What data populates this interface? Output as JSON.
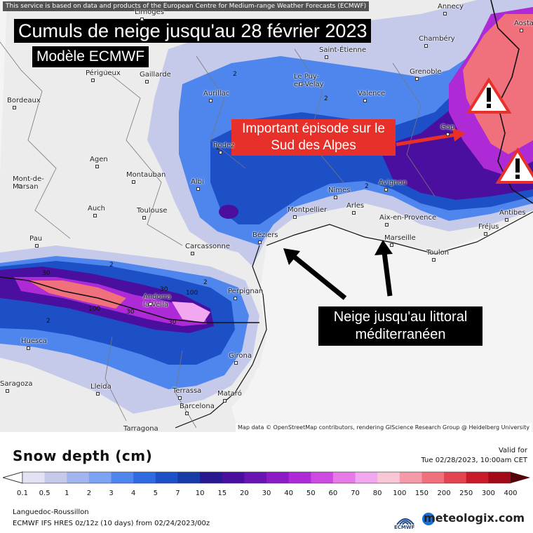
{
  "map": {
    "credit_top": "This service is based on data and products of the European Centre for Medium-range Weather Forecasts (ECMWF)",
    "title": "Cumuls de neige jusqu'au 28 février 2023",
    "subtitle": "Modèle ECMWF",
    "annotation_alps": "Important épisode sur le Sud des Alpes",
    "annotation_coast": "Neige jusqu'au littoral méditerranéen",
    "map_credit": "Map data © OpenStreetMap contributors, rendering GIScience Research Group @ Heidelberg University",
    "cities": [
      {
        "name": "Limoges"
      },
      {
        "name": "Annecy"
      },
      {
        "name": "Aosta"
      },
      {
        "name": "Saint-Étienne"
      },
      {
        "name": "Chambéry"
      },
      {
        "name": "Périgueux"
      },
      {
        "name": "Gaillarde"
      },
      {
        "name": "Grenoble"
      },
      {
        "name": "Le Puy-en-Velay"
      },
      {
        "name": "Bordeaux"
      },
      {
        "name": "Aurillac"
      },
      {
        "name": "Valence"
      },
      {
        "name": "Gap"
      },
      {
        "name": "Rodez"
      },
      {
        "name": "Agen"
      },
      {
        "name": "Montauban"
      },
      {
        "name": "Mont-de-Marsan"
      },
      {
        "name": "Albi"
      },
      {
        "name": "Nîmes"
      },
      {
        "name": "Avignon"
      },
      {
        "name": "Auch"
      },
      {
        "name": "Toulouse"
      },
      {
        "name": "Montpellier"
      },
      {
        "name": "Arles"
      },
      {
        "name": "Aix-en-Provence"
      },
      {
        "name": "Antibes"
      },
      {
        "name": "Fréjus"
      },
      {
        "name": "Pau"
      },
      {
        "name": "Béziers"
      },
      {
        "name": "Carcassonne"
      },
      {
        "name": "Marseille"
      },
      {
        "name": "Toulon"
      },
      {
        "name": "Perpignan"
      },
      {
        "name": "Andorra la Vella"
      },
      {
        "name": "Huesca"
      },
      {
        "name": "Girona"
      },
      {
        "name": "Lleida"
      },
      {
        "name": "Terrassa"
      },
      {
        "name": "Mataró"
      },
      {
        "name": "Barcelona"
      },
      {
        "name": "Tarragona"
      },
      {
        "name": "Saragoza"
      }
    ],
    "contour_labels": [
      "2",
      "2",
      "2",
      "2",
      "2",
      "2",
      "30",
      "30",
      "100",
      "100",
      "30",
      "30",
      "2"
    ]
  },
  "legend": {
    "title": "Snow depth (cm)",
    "valid_label": "Valid for",
    "valid_time": "Tue 02/28/2023, 10:00am CET",
    "ticks": [
      "0.1",
      "0.5",
      "1",
      "2",
      "3",
      "4",
      "5",
      "7",
      "10",
      "15",
      "20",
      "30",
      "40",
      "50",
      "60",
      "70",
      "80",
      "100",
      "150",
      "200",
      "250",
      "300",
      "400"
    ],
    "colors": [
      "#e2e2f4",
      "#c5c9ea",
      "#a3b5ef",
      "#7da3f4",
      "#4f86ee",
      "#2e6ae0",
      "#1d4fc7",
      "#163aa6",
      "#2a1891",
      "#4a0f9f",
      "#6a14b3",
      "#8c1bc5",
      "#ad2ad6",
      "#cd4ae0",
      "#e87ae8",
      "#f2a8f0",
      "#f8c6d4",
      "#f59aa8",
      "#f0707c",
      "#e34450",
      "#c81a28",
      "#a20a18",
      "#7a0610",
      "#520208"
    ]
  },
  "footer": {
    "region": "Languedoc-Roussillon",
    "model_run": "ECMWF IFS HRES 0z/12z (10 days) from 02/24/2023/00z",
    "ecmwf_label": "ECMWF",
    "brand": "meteologix.com"
  }
}
